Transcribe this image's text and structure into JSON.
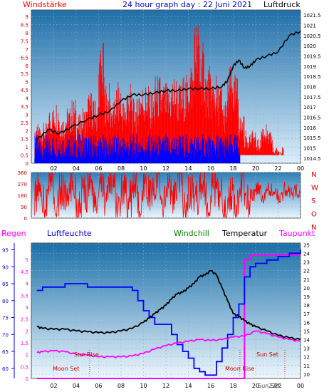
{
  "header": {
    "wind_label": "Windstärke",
    "title": "24 hour graph day : 22 Juni 2021",
    "pressure_label": "Luftdruck"
  },
  "colors": {
    "wind": "#ff0000",
    "wind_low": "#0000ff",
    "pressure": "#000000",
    "direction": "#ff0000",
    "humidity": "#0000ff",
    "temperature": "#000000",
    "dewpoint": "#ff00ff",
    "rain": "#ff00ff",
    "panel_top": "#1a6fa8",
    "panel_bottom": "#e6f2fb"
  },
  "chart_data": [
    {
      "type": "line",
      "name": "wind-pressure",
      "x_ticks": [
        "02",
        "04",
        "06",
        "08",
        "10",
        "12",
        "14",
        "16",
        "18",
        "20",
        "22",
        "00"
      ],
      "y_left_ticks": [
        "0",
        "0.5",
        "1",
        "1.5",
        "2",
        "2.5",
        "3",
        "3.5",
        "4",
        "4.5",
        "5",
        "5.5",
        "6",
        "6.5",
        "7",
        "7.5",
        "8",
        "8.5",
        "9"
      ],
      "y_right_ticks": [
        "1014.5",
        "1015",
        "1015.5",
        "1016",
        "1016.5",
        "1017",
        "1017.5",
        "1018",
        "1018.5",
        "1019",
        "1019.5",
        "1020",
        "1020.5",
        "1021",
        "1021.5"
      ],
      "ylim_left": [
        0,
        9.4
      ],
      "ylim_right": [
        1014.25,
        1021.75
      ],
      "pressure": [
        [
          0.5,
          1015.4
        ],
        [
          1.5,
          1015.9
        ],
        [
          2.5,
          1015.7
        ],
        [
          3.5,
          1016.0
        ],
        [
          5,
          1016.4
        ],
        [
          6,
          1016.6
        ],
        [
          7,
          1016.8
        ],
        [
          8,
          1017.3
        ],
        [
          9,
          1017.6
        ],
        [
          10,
          1017.6
        ],
        [
          11,
          1017.7
        ],
        [
          12,
          1017.8
        ],
        [
          13,
          1017.8
        ],
        [
          14,
          1017.9
        ],
        [
          15,
          1017.9
        ],
        [
          16,
          1017.9
        ],
        [
          17,
          1018.0
        ],
        [
          17.5,
          1018.3
        ],
        [
          18,
          1019.0
        ],
        [
          18.5,
          1019.3
        ],
        [
          19,
          1018.9
        ],
        [
          19.5,
          1019.0
        ],
        [
          20,
          1019.3
        ],
        [
          21,
          1019.5
        ],
        [
          22,
          1019.7
        ],
        [
          23,
          1020.5
        ],
        [
          24,
          1020.7
        ]
      ],
      "wind_peak_hours": [
        0.5,
        1,
        1.5,
        2,
        2.5,
        3,
        3.5,
        4,
        4.5,
        5,
        5.5,
        6,
        6.5,
        7,
        7.5,
        8,
        8.5,
        9,
        9.5,
        10,
        10.5,
        11,
        11.5,
        12,
        12.5,
        13,
        13.5,
        14,
        14.5,
        15,
        15.5,
        16,
        16.5,
        17,
        17.5,
        18,
        18.5,
        19,
        19.5,
        20,
        20.5,
        21,
        21.5,
        22,
        22.5,
        23,
        23.5,
        24
      ],
      "wind_peak_values": [
        2.0,
        2.5,
        2.5,
        3.5,
        4.0,
        3.0,
        3.5,
        4.0,
        3.0,
        3.5,
        4.5,
        4.0,
        7.5,
        5.0,
        4.0,
        5.0,
        4.0,
        5.0,
        4.0,
        5.0,
        5.0,
        4.5,
        5.5,
        5.0,
        5.0,
        5.5,
        5.0,
        5.5,
        6.5,
        9.0,
        7.5,
        6.0,
        5.5,
        5.0,
        4.0,
        6.0,
        5.5,
        3.0,
        2.0,
        2.0,
        1.5,
        2.5,
        2.0,
        1.0,
        1.0,
        0.5,
        0.5,
        0.5
      ]
    },
    {
      "type": "line",
      "name": "wind-direction",
      "y_ticks": [
        "0",
        "90",
        "180",
        "270",
        "360"
      ],
      "compass": [
        "N",
        "W",
        "S",
        "O",
        "N"
      ],
      "ylim": [
        0,
        360
      ],
      "direction_samples": [
        [
          0.5,
          180
        ],
        [
          1,
          250
        ],
        [
          1.5,
          120
        ],
        [
          2,
          300
        ],
        [
          2.5,
          80
        ],
        [
          3,
          220
        ],
        [
          3.5,
          160
        ],
        [
          4,
          280
        ],
        [
          4.5,
          60
        ],
        [
          5,
          200
        ],
        [
          5.5,
          320
        ],
        [
          6,
          110
        ],
        [
          6.5,
          240
        ],
        [
          7,
          170
        ],
        [
          7.5,
          300
        ],
        [
          8,
          90
        ],
        [
          8.5,
          260
        ],
        [
          9,
          150
        ],
        [
          9.5,
          310
        ],
        [
          10,
          70
        ],
        [
          10.5,
          230
        ],
        [
          11,
          190
        ],
        [
          11.5,
          280
        ],
        [
          12,
          120
        ],
        [
          12.5,
          250
        ],
        [
          13,
          170
        ],
        [
          13.5,
          300
        ],
        [
          14,
          100
        ],
        [
          14.5,
          220
        ],
        [
          15,
          160
        ],
        [
          15.5,
          290
        ],
        [
          16,
          130
        ],
        [
          16.5,
          240
        ],
        [
          17,
          190
        ],
        [
          17.5,
          60
        ],
        [
          18,
          210
        ],
        [
          18.5,
          150
        ],
        [
          19,
          260
        ],
        [
          19.5,
          120
        ],
        [
          20,
          180
        ],
        [
          20.5,
          240
        ],
        [
          21,
          170
        ],
        [
          21.5,
          220
        ],
        [
          22,
          200
        ],
        [
          22.5,
          160
        ],
        [
          23,
          230
        ],
        [
          23.5,
          190
        ],
        [
          24,
          210
        ]
      ]
    },
    {
      "type": "line",
      "name": "rain-humidity-temperature",
      "labels": {
        "regen": "Regen",
        "humidity": "Luftfeuchte",
        "windchill": "Windchill",
        "temperature": "Temperatur",
        "dewpoint": "Taupunkt"
      },
      "annotations": {
        "moon_set_1": "Moon Set",
        "sun_rise": "Sun Rise",
        "moon_rise": "Moon Rise",
        "sun_set": "Sun Set",
        "bottom_label": "Sun Set",
        "bottom_date": "22"
      },
      "y_rain_ticks": [
        "0",
        "0.5",
        "1",
        "1.5",
        "2",
        "2.5",
        "3",
        "3.5",
        "4",
        "4.5",
        "5"
      ],
      "y_humidity_ticks": [
        "60",
        "65",
        "70",
        "75",
        "80",
        "85",
        "90",
        "95"
      ],
      "y_temp_ticks": [
        "10",
        "11",
        "12",
        "13",
        "14",
        "15",
        "16",
        "17",
        "18",
        "19",
        "20",
        "21",
        "22",
        "23",
        "24",
        "25"
      ],
      "ylim_temp": [
        9.5,
        25.2
      ],
      "humidity": [
        [
          0.5,
          83
        ],
        [
          1,
          84
        ],
        [
          2,
          84
        ],
        [
          3,
          85
        ],
        [
          4,
          85
        ],
        [
          5,
          84
        ],
        [
          6,
          84
        ],
        [
          7,
          84
        ],
        [
          8,
          84
        ],
        [
          9,
          83
        ],
        [
          9.5,
          80
        ],
        [
          10,
          77
        ],
        [
          10.5,
          75
        ],
        [
          11,
          73
        ],
        [
          12,
          73
        ],
        [
          12.5,
          70
        ],
        [
          13,
          67
        ],
        [
          13.5,
          65
        ],
        [
          14,
          63
        ],
        [
          14.5,
          60
        ],
        [
          15,
          59
        ],
        [
          15.5,
          58
        ],
        [
          16,
          58
        ],
        [
          16.5,
          62
        ],
        [
          17,
          66
        ],
        [
          17.5,
          70
        ],
        [
          18,
          75
        ],
        [
          18.5,
          79
        ],
        [
          19,
          87
        ],
        [
          19.5,
          90
        ],
        [
          20,
          91
        ],
        [
          21,
          92
        ],
        [
          22,
          93
        ],
        [
          23,
          94
        ],
        [
          24,
          95
        ]
      ],
      "temperature": [
        [
          0.5,
          15.5
        ],
        [
          1,
          15.3
        ],
        [
          2,
          15.2
        ],
        [
          3,
          15.2
        ],
        [
          4,
          15.0
        ],
        [
          5,
          14.9
        ],
        [
          6,
          14.8
        ],
        [
          7,
          14.8
        ],
        [
          8,
          15.0
        ],
        [
          9,
          15.3
        ],
        [
          10,
          16.0
        ],
        [
          10.5,
          16.5
        ],
        [
          11,
          17.0
        ],
        [
          11.5,
          17.5
        ],
        [
          12,
          18.0
        ],
        [
          12.5,
          18.7
        ],
        [
          13,
          19.3
        ],
        [
          13.5,
          19.5
        ],
        [
          14,
          20.0
        ],
        [
          14.5,
          20.5
        ],
        [
          15,
          21.3
        ],
        [
          15.5,
          21.5
        ],
        [
          16,
          22.0
        ],
        [
          16.5,
          21.5
        ],
        [
          17,
          20.0
        ],
        [
          17.5,
          18.5
        ],
        [
          18,
          17.0
        ],
        [
          18.5,
          16.7
        ],
        [
          19,
          16.2
        ],
        [
          19.5,
          15.8
        ],
        [
          20,
          15.5
        ],
        [
          21,
          15.0
        ],
        [
          22,
          14.5
        ],
        [
          23,
          14.2
        ],
        [
          24,
          14.0
        ]
      ],
      "dewpoint": [
        [
          0.5,
          12.5
        ],
        [
          1,
          12.6
        ],
        [
          2,
          12.7
        ],
        [
          3,
          12.6
        ],
        [
          4,
          12.3
        ],
        [
          5,
          12.2
        ],
        [
          6,
          12.0
        ],
        [
          7,
          12.0
        ],
        [
          8,
          12.0
        ],
        [
          9,
          12.1
        ],
        [
          10,
          12.4
        ],
        [
          11,
          12.9
        ],
        [
          12,
          13.3
        ],
        [
          13,
          13.6
        ],
        [
          14,
          13.8
        ],
        [
          15,
          14.0
        ],
        [
          16,
          13.9
        ],
        [
          17,
          14.0
        ],
        [
          18,
          14.3
        ],
        [
          19,
          14.4
        ],
        [
          20,
          15.0
        ],
        [
          21,
          14.7
        ],
        [
          22,
          14.3
        ],
        [
          23,
          14.0
        ],
        [
          24,
          13.8
        ]
      ],
      "rain_hours": [
        [
          0.5,
          0
        ],
        [
          18.8,
          0
        ],
        [
          19,
          5.0
        ],
        [
          19.5,
          5.2
        ],
        [
          24,
          5.2
        ]
      ]
    }
  ]
}
